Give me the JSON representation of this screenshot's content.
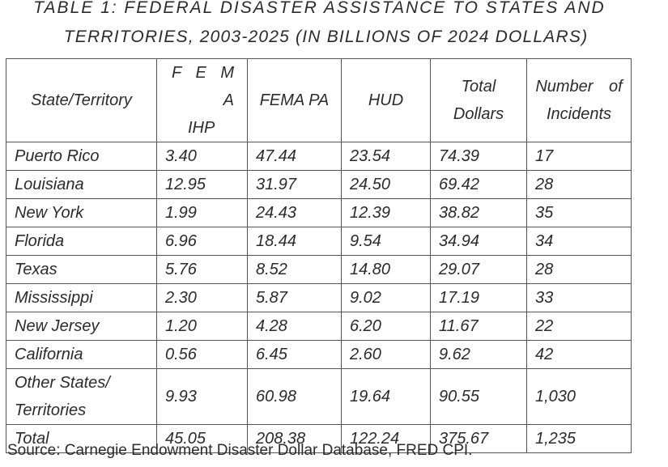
{
  "title": {
    "line1": "TABLE 1: FEDERAL DISASTER ASSISTANCE TO STATES AND",
    "line2": "TERRITORIES, 2003-2025 (IN BILLIONS OF 2024 DOLLARS)"
  },
  "table": {
    "headers": {
      "state": "State/Territory",
      "fema_ihp_line1": "F E M A",
      "fema_ihp_line2": "IHP",
      "fema_pa": "FEMA PA",
      "hud": "HUD",
      "total_line1": "Total",
      "total_line2": "Dollars",
      "incidents_line1": "Number of",
      "incidents_line2": "Incidents"
    },
    "rows": [
      {
        "state": "Puerto Rico",
        "fema_ihp": "3.40",
        "fema_pa": "47.44",
        "hud": "23.54",
        "total": "74.39",
        "incidents": "17"
      },
      {
        "state": "Louisiana",
        "fema_ihp": "12.95",
        "fema_pa": "31.97",
        "hud": "24.50",
        "total": "69.42",
        "incidents": "28"
      },
      {
        "state": "New York",
        "fema_ihp": "1.99",
        "fema_pa": "24.43",
        "hud": "12.39",
        "total": "38.82",
        "incidents": "35"
      },
      {
        "state": "Florida",
        "fema_ihp": "6.96",
        "fema_pa": "18.44",
        "hud": "9.54",
        "total": "34.94",
        "incidents": "34"
      },
      {
        "state": "Texas",
        "fema_ihp": "5.76",
        "fema_pa": "8.52",
        "hud": "14.80",
        "total": "29.07",
        "incidents": "28"
      },
      {
        "state": "Mississippi",
        "fema_ihp": "2.30",
        "fema_pa": "5.87",
        "hud": "9.02",
        "total": "17.19",
        "incidents": "33"
      },
      {
        "state": "New Jersey",
        "fema_ihp": "1.20",
        "fema_pa": "4.28",
        "hud": "6.20",
        "total": "11.67",
        "incidents": "22"
      },
      {
        "state": "California",
        "fema_ihp": "0.56",
        "fema_pa": "6.45",
        "hud": "2.60",
        "total": "9.62",
        "incidents": "42"
      },
      {
        "state": "Other States/ Territories",
        "fema_ihp": "9.93",
        "fema_pa": "60.98",
        "hud": "19.64",
        "total": "90.55",
        "incidents": "1,030"
      },
      {
        "state": "Total",
        "fema_ihp": "45.05",
        "fema_pa": "208.38",
        "hud": "122.24",
        "total": "375.67",
        "incidents": "1,235"
      }
    ]
  },
  "source": "Source: Carnegie Endowment Disaster Dollar Database, FRED CPI."
}
